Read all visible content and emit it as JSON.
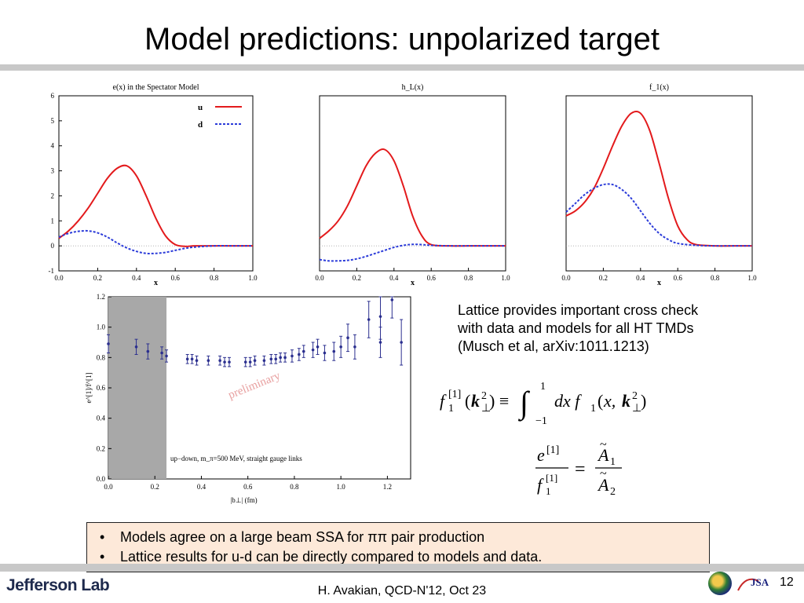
{
  "slide": {
    "title": "Model predictions: unpolarized target",
    "footer": "H. Avakian, QCD-N'12,  Oct 23",
    "page_number": "12",
    "logo": "Jefferson Lab",
    "badge_text": "JSA"
  },
  "lattice_text": {
    "line1": "Lattice provides important cross check",
    "line2": "with data and models for  all HT  TMDs",
    "line3": "(Musch et al, arXiv:1011.1213)"
  },
  "equations": {
    "definition": "f₁^[1](k⊥²) ≡ ∫₋₁¹ dx f₁(x, k⊥²)",
    "ratio": "e^[1] / f₁^[1] = Ã₁ / Ã₂"
  },
  "bullets": [
    "Models agree on a large beam SSA for ππ pair production",
    "Lattice results for u-d can be directly compared to models and data."
  ],
  "chart_data": [
    {
      "type": "line",
      "title": "e(x) in the Spectator Model",
      "xlabel": "x",
      "xlim": [
        0,
        1
      ],
      "ylim": [
        -1,
        6
      ],
      "xticks": [
        "0.0",
        "0.2",
        "0.4",
        "0.6",
        "0.8",
        "1.0"
      ],
      "yticks": [
        "-1",
        "0",
        "1",
        "2",
        "3",
        "4",
        "5",
        "6"
      ],
      "legend_position": "top-right",
      "series": [
        {
          "name": "u",
          "color": "#e31a1c",
          "style": "solid",
          "x": [
            0,
            0.05,
            0.1,
            0.15,
            0.2,
            0.25,
            0.3,
            0.35,
            0.4,
            0.45,
            0.5,
            0.55,
            0.6,
            0.65,
            0.7,
            0.8,
            0.9,
            1.0
          ],
          "y": [
            0.3,
            0.6,
            1.0,
            1.5,
            2.1,
            2.7,
            3.1,
            3.2,
            2.8,
            2.0,
            1.1,
            0.4,
            0.05,
            -0.02,
            0.0,
            0.0,
            0.0,
            0.0
          ]
        },
        {
          "name": "d",
          "color": "#2b3bd9",
          "style": "dashed",
          "x": [
            0,
            0.05,
            0.1,
            0.15,
            0.2,
            0.25,
            0.3,
            0.35,
            0.4,
            0.45,
            0.5,
            0.55,
            0.6,
            0.65,
            0.7,
            0.8,
            0.9,
            1.0
          ],
          "y": [
            0.35,
            0.5,
            0.58,
            0.6,
            0.52,
            0.35,
            0.12,
            -0.08,
            -0.22,
            -0.3,
            -0.3,
            -0.26,
            -0.18,
            -0.1,
            -0.05,
            0.0,
            0.0,
            0.0
          ]
        }
      ]
    },
    {
      "type": "line",
      "title": "h_L(x)",
      "xlabel": "x",
      "xlim": [
        0,
        1
      ],
      "ylim": [
        -1,
        6
      ],
      "xticks": [
        "0.0",
        "0.2",
        "0.4",
        "0.6",
        "0.8",
        "1.0"
      ],
      "series": [
        {
          "color": "#e31a1c",
          "style": "solid",
          "x": [
            0,
            0.05,
            0.1,
            0.15,
            0.2,
            0.25,
            0.3,
            0.35,
            0.4,
            0.45,
            0.5,
            0.55,
            0.6,
            0.7,
            0.8,
            0.9,
            1.0
          ],
          "y": [
            0.3,
            0.6,
            1.0,
            1.6,
            2.4,
            3.2,
            3.7,
            3.85,
            3.4,
            2.4,
            1.2,
            0.4,
            0.05,
            0.0,
            0.0,
            0.0,
            0.0
          ]
        },
        {
          "color": "#2b3bd9",
          "style": "dashed",
          "x": [
            0,
            0.05,
            0.1,
            0.15,
            0.2,
            0.25,
            0.3,
            0.35,
            0.4,
            0.45,
            0.5,
            0.55,
            0.6,
            0.7,
            0.8,
            0.9,
            1.0
          ],
          "y": [
            -0.55,
            -0.6,
            -0.6,
            -0.58,
            -0.52,
            -0.42,
            -0.3,
            -0.18,
            -0.06,
            0.02,
            0.06,
            0.05,
            0.02,
            0.0,
            0.0,
            0.0,
            0.0
          ]
        }
      ]
    },
    {
      "type": "line",
      "title": "f_1(x)",
      "xlabel": "x",
      "xlim": [
        0,
        1
      ],
      "ylim": [
        -1,
        6
      ],
      "xticks": [
        "0.0",
        "0.2",
        "0.4",
        "0.6",
        "0.8",
        "1.0"
      ],
      "series": [
        {
          "color": "#e31a1c",
          "style": "solid",
          "x": [
            0,
            0.05,
            0.1,
            0.15,
            0.2,
            0.25,
            0.3,
            0.35,
            0.4,
            0.45,
            0.5,
            0.55,
            0.6,
            0.65,
            0.7,
            0.8,
            0.9,
            1.0
          ],
          "y": [
            1.2,
            1.4,
            1.75,
            2.3,
            3.1,
            4.0,
            4.8,
            5.3,
            5.3,
            4.6,
            3.3,
            1.9,
            0.8,
            0.25,
            0.05,
            0.0,
            0.0,
            0.0
          ]
        },
        {
          "color": "#2b3bd9",
          "style": "dashed",
          "x": [
            0,
            0.05,
            0.1,
            0.15,
            0.2,
            0.25,
            0.3,
            0.35,
            0.4,
            0.45,
            0.5,
            0.55,
            0.6,
            0.7,
            0.8,
            0.9,
            1.0
          ],
          "y": [
            1.35,
            1.7,
            2.05,
            2.3,
            2.45,
            2.45,
            2.25,
            1.9,
            1.4,
            0.9,
            0.5,
            0.25,
            0.1,
            0.02,
            0.0,
            0.0,
            0.0
          ]
        }
      ]
    },
    {
      "type": "scatter",
      "xlabel": "|b⊥|  (fm)",
      "ylabel": "e^[1]/f^[1]",
      "xlim": [
        0,
        1.3
      ],
      "ylim": [
        0,
        1.2
      ],
      "xticks": [
        "0.0",
        "0.2",
        "0.4",
        "0.6",
        "0.8",
        "1.0",
        "1.2"
      ],
      "yticks": [
        "0.0",
        "0.2",
        "0.4",
        "0.6",
        "0.8",
        "1.0",
        "1.2"
      ],
      "shaded_x": [
        0,
        0.25
      ],
      "watermark": "preliminary",
      "annotation": "up−down, m_π=500 MeV, straight gauge links",
      "color": "#2b2f8f",
      "points": [
        {
          "x": 0.0,
          "y": 0.89,
          "err": 0.06
        },
        {
          "x": 0.12,
          "y": 0.87,
          "err": 0.05
        },
        {
          "x": 0.17,
          "y": 0.84,
          "err": 0.05
        },
        {
          "x": 0.23,
          "y": 0.83,
          "err": 0.04
        },
        {
          "x": 0.25,
          "y": 0.81,
          "err": 0.04
        },
        {
          "x": 0.34,
          "y": 0.79,
          "err": 0.03
        },
        {
          "x": 0.36,
          "y": 0.79,
          "err": 0.03
        },
        {
          "x": 0.38,
          "y": 0.78,
          "err": 0.03
        },
        {
          "x": 0.43,
          "y": 0.78,
          "err": 0.03
        },
        {
          "x": 0.48,
          "y": 0.78,
          "err": 0.03
        },
        {
          "x": 0.5,
          "y": 0.77,
          "err": 0.03
        },
        {
          "x": 0.52,
          "y": 0.77,
          "err": 0.03
        },
        {
          "x": 0.59,
          "y": 0.77,
          "err": 0.03
        },
        {
          "x": 0.61,
          "y": 0.77,
          "err": 0.03
        },
        {
          "x": 0.63,
          "y": 0.78,
          "err": 0.03
        },
        {
          "x": 0.67,
          "y": 0.78,
          "err": 0.03
        },
        {
          "x": 0.7,
          "y": 0.79,
          "err": 0.03
        },
        {
          "x": 0.72,
          "y": 0.79,
          "err": 0.03
        },
        {
          "x": 0.74,
          "y": 0.8,
          "err": 0.03
        },
        {
          "x": 0.76,
          "y": 0.8,
          "err": 0.03
        },
        {
          "x": 0.79,
          "y": 0.81,
          "err": 0.04
        },
        {
          "x": 0.82,
          "y": 0.82,
          "err": 0.04
        },
        {
          "x": 0.84,
          "y": 0.84,
          "err": 0.04
        },
        {
          "x": 0.88,
          "y": 0.85,
          "err": 0.05
        },
        {
          "x": 0.9,
          "y": 0.87,
          "err": 0.05
        },
        {
          "x": 0.93,
          "y": 0.83,
          "err": 0.05
        },
        {
          "x": 0.97,
          "y": 0.84,
          "err": 0.06
        },
        {
          "x": 1.0,
          "y": 0.87,
          "err": 0.07
        },
        {
          "x": 1.03,
          "y": 0.93,
          "err": 0.09
        },
        {
          "x": 1.06,
          "y": 0.87,
          "err": 0.08
        },
        {
          "x": 1.12,
          "y": 1.05,
          "err": 0.12
        },
        {
          "x": 1.17,
          "y": 1.07,
          "err": 0.15
        },
        {
          "x": 1.17,
          "y": 0.9,
          "err": 0.1
        },
        {
          "x": 1.22,
          "y": 1.18,
          "err": 0.12
        },
        {
          "x": 1.26,
          "y": 0.9,
          "err": 0.15
        }
      ]
    }
  ]
}
